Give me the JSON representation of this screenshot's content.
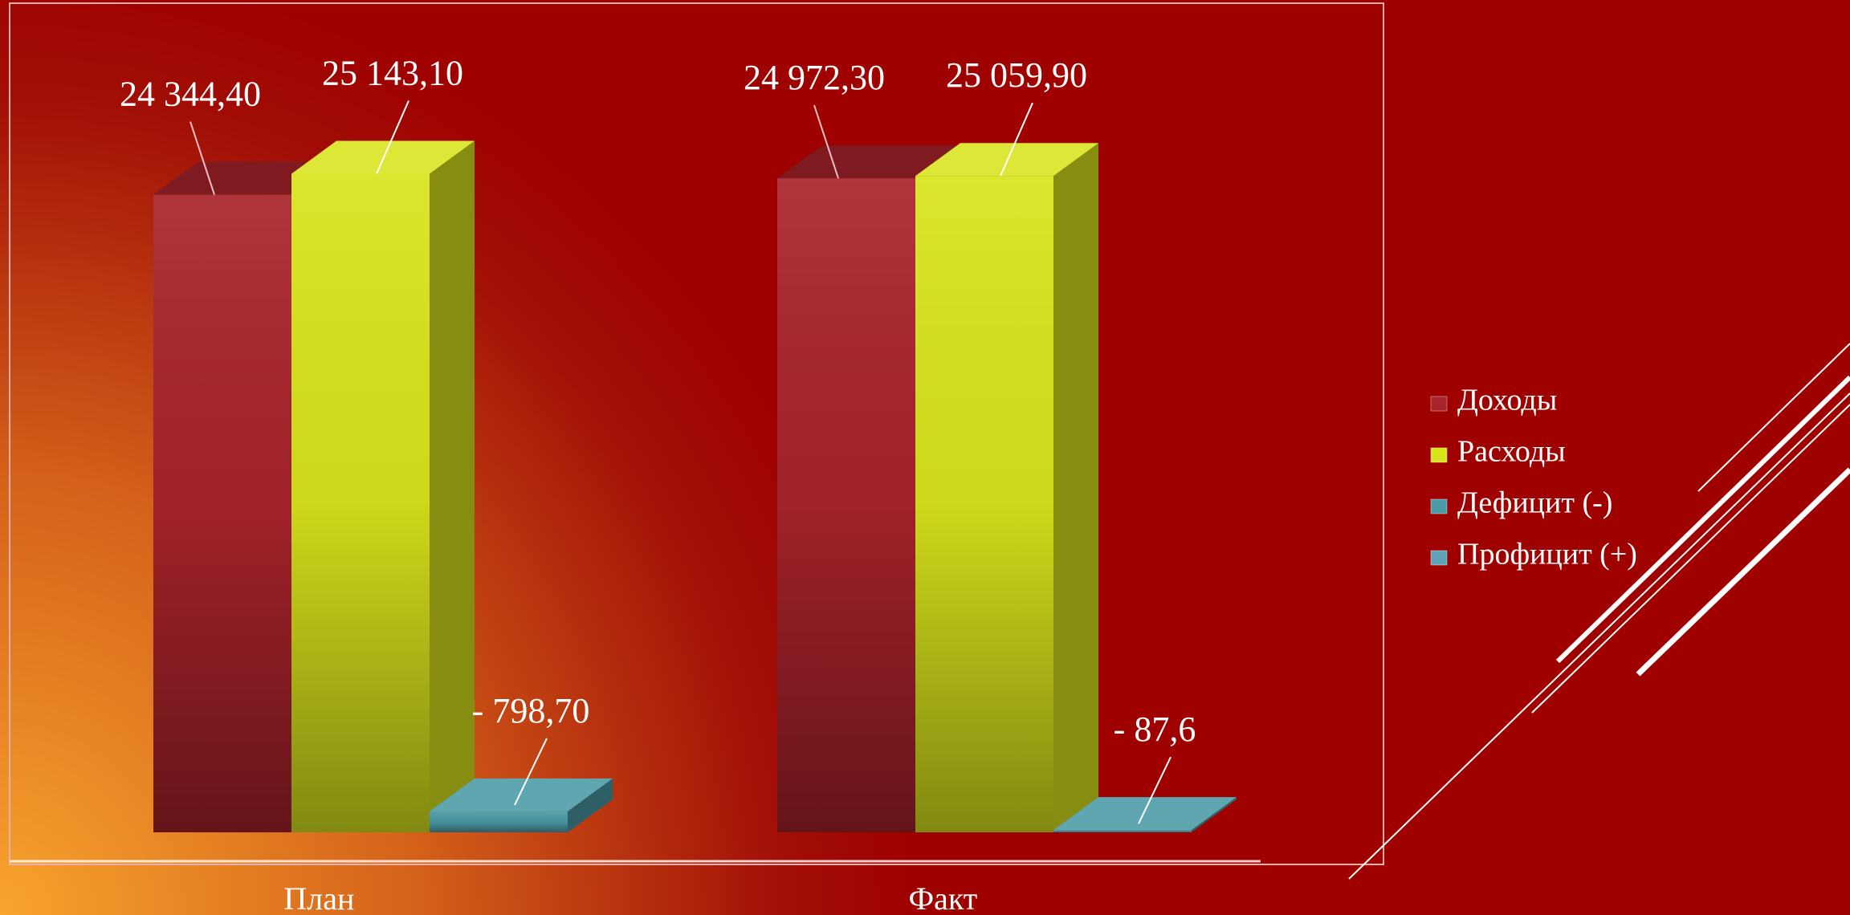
{
  "chart_data": {
    "type": "bar3d",
    "categories": [
      "План",
      "Факт"
    ],
    "series": [
      {
        "name": "Доходы",
        "color": "#a8232b",
        "values": [
          24344.4,
          24972.3
        ],
        "value_labels": [
          "24 344,40",
          "24 972,30"
        ]
      },
      {
        "name": "Расходы",
        "color": "#d8e41c",
        "values": [
          25143.1,
          25059.9
        ],
        "value_labels": [
          "25 143,10",
          "25 059,90"
        ]
      },
      {
        "name": "Дефицит (-)",
        "color": "#4b9aa6",
        "values": [
          -798.7,
          -87.6
        ],
        "value_labels": [
          "- 798,70",
          "- 87,6"
        ]
      },
      {
        "name": "Профицит (+)",
        "color": "#5ea3b8",
        "values": [
          null,
          null
        ]
      }
    ],
    "ylim": [
      0,
      30000
    ],
    "legend": "right"
  }
}
